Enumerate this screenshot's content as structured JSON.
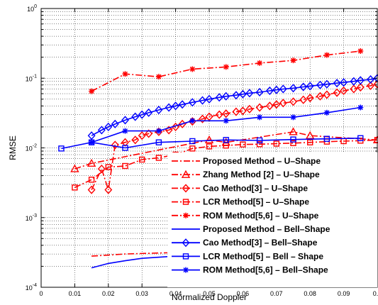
{
  "chart_data": {
    "type": "line",
    "title": "",
    "xlabel": "Normalized Doppler",
    "ylabel": "RMSE",
    "xlim": [
      0,
      0.1
    ],
    "ylim": [
      0.0001,
      1
    ],
    "yscale": "log",
    "grid": true,
    "legend_position": "bottom-right",
    "x_ticks": [
      0,
      0.01,
      0.02,
      0.03,
      0.04,
      0.05,
      0.06,
      0.07,
      0.08,
      0.09,
      0.1
    ],
    "x_tick_labels": [
      "0",
      "0.01",
      "0.02",
      "0.03",
      "0.04",
      "0.05",
      "0.06",
      "0.07",
      "0.08",
      "0.09",
      "0.1"
    ],
    "y_ticks": [
      0.0001,
      0.001,
      0.01,
      0.1,
      1
    ],
    "y_tick_labels": [
      {
        "base": "10",
        "exp": "-4"
      },
      {
        "base": "10",
        "exp": "-3"
      },
      {
        "base": "10",
        "exp": "-2"
      },
      {
        "base": "10",
        "exp": "-1"
      },
      {
        "base": "10",
        "exp": "0"
      }
    ],
    "series": [
      {
        "name": "Proposed Method – U–Shape",
        "color": "#ff0000",
        "dash": "dashdot",
        "marker": "none",
        "x": [
          0.015,
          0.025,
          0.035,
          0.045,
          0.055,
          0.065,
          0.075,
          0.085,
          0.1
        ],
        "y": [
          0.00028,
          0.0003,
          0.00031,
          0.00032,
          0.00033,
          0.00034,
          0.00034,
          0.00035,
          0.00036
        ]
      },
      {
        "name": "Zhang Method [2] – U–Shape",
        "color": "#ff0000",
        "dash": "dashdot",
        "marker": "triangle",
        "x": [
          0.01,
          0.015,
          0.05,
          0.055,
          0.075,
          0.08,
          0.1
        ],
        "y": [
          0.005,
          0.006,
          0.013,
          0.012,
          0.017,
          0.015,
          0.013
        ]
      },
      {
        "name": "Cao Method[3] – U–Shape",
        "color": "#ff0000",
        "dash": "dashdot",
        "marker": "diamond",
        "x": [
          0.015,
          0.018,
          0.02,
          0.022,
          0.025,
          0.028,
          0.03,
          0.032,
          0.035,
          0.038,
          0.04,
          0.042,
          0.045,
          0.048,
          0.05,
          0.053,
          0.055,
          0.058,
          0.06,
          0.062,
          0.065,
          0.068,
          0.07,
          0.072,
          0.075,
          0.078,
          0.08,
          0.083,
          0.085,
          0.088,
          0.09,
          0.093,
          0.095,
          0.098,
          0.1
        ],
        "y": [
          0.0025,
          0.005,
          0.0025,
          0.011,
          0.012,
          0.013,
          0.015,
          0.016,
          0.017,
          0.018,
          0.02,
          0.022,
          0.024,
          0.026,
          0.028,
          0.03,
          0.031,
          0.033,
          0.034,
          0.036,
          0.038,
          0.04,
          0.042,
          0.044,
          0.046,
          0.049,
          0.052,
          0.055,
          0.058,
          0.062,
          0.066,
          0.07,
          0.074,
          0.078,
          0.082
        ]
      },
      {
        "name": "LCR Method[5] – U–Shape",
        "color": "#ff0000",
        "dash": "dashdot",
        "marker": "square",
        "x": [
          0.01,
          0.015,
          0.02,
          0.025,
          0.03,
          0.035,
          0.04,
          0.045,
          0.05,
          0.055,
          0.06,
          0.065,
          0.07,
          0.075,
          0.08,
          0.085,
          0.09,
          0.095,
          0.1
        ],
        "y": [
          0.0027,
          0.0035,
          0.0053,
          0.0055,
          0.0068,
          0.0072,
          0.008,
          0.0098,
          0.0105,
          0.0108,
          0.0112,
          0.0113,
          0.0115,
          0.0117,
          0.012,
          0.0123,
          0.0125,
          0.0127,
          0.013
        ]
      },
      {
        "name": "ROM Method[5,6] – U–Shape",
        "color": "#ff0000",
        "dash": "dashdot",
        "marker": "star",
        "x": [
          0.015,
          0.025,
          0.035,
          0.045,
          0.055,
          0.065,
          0.075,
          0.085,
          0.095
        ],
        "y": [
          0.065,
          0.115,
          0.105,
          0.135,
          0.145,
          0.165,
          0.18,
          0.215,
          0.245
        ]
      },
      {
        "name": "Proposed Method – Bell–Shape",
        "color": "#0000ff",
        "dash": "solid",
        "marker": "none",
        "x": [
          0.015,
          0.02,
          0.025,
          0.03,
          0.04,
          0.05,
          0.06,
          0.07,
          0.08,
          0.09,
          0.1
        ],
        "y": [
          0.00019,
          0.00022,
          0.00024,
          0.00026,
          0.00028,
          0.00029,
          0.0003,
          0.0003,
          0.0003,
          0.0003,
          0.0003
        ]
      },
      {
        "name": "Cao Method[3] – Bell–Shape",
        "color": "#0000ff",
        "dash": "solid",
        "marker": "diamond",
        "x": [
          0.015,
          0.018,
          0.02,
          0.022,
          0.025,
          0.028,
          0.03,
          0.032,
          0.035,
          0.038,
          0.04,
          0.042,
          0.045,
          0.048,
          0.05,
          0.053,
          0.055,
          0.058,
          0.06,
          0.062,
          0.065,
          0.068,
          0.07,
          0.072,
          0.075,
          0.078,
          0.08,
          0.083,
          0.085,
          0.088,
          0.09,
          0.093,
          0.095,
          0.098,
          0.1
        ],
        "y": [
          0.015,
          0.018,
          0.02,
          0.022,
          0.025,
          0.028,
          0.03,
          0.032,
          0.035,
          0.038,
          0.04,
          0.042,
          0.045,
          0.048,
          0.05,
          0.053,
          0.055,
          0.057,
          0.059,
          0.061,
          0.063,
          0.066,
          0.068,
          0.07,
          0.072,
          0.075,
          0.077,
          0.08,
          0.082,
          0.085,
          0.087,
          0.09,
          0.093,
          0.096,
          0.1
        ]
      },
      {
        "name": "LCR Method[5] – Bell – Shape",
        "color": "#0000ff",
        "dash": "solid",
        "marker": "square",
        "x": [
          0.006,
          0.015,
          0.025,
          0.035,
          0.045,
          0.055,
          0.065,
          0.075,
          0.085,
          0.095
        ],
        "y": [
          0.0098,
          0.012,
          0.01,
          0.012,
          0.0125,
          0.013,
          0.0128,
          0.0132,
          0.0135,
          0.0138
        ]
      },
      {
        "name": "ROM Method[5,6] – Bell–Shape",
        "color": "#0000ff",
        "dash": "solid",
        "marker": "star",
        "x": [
          0.015,
          0.025,
          0.035,
          0.045,
          0.055,
          0.065,
          0.075,
          0.085,
          0.095
        ],
        "y": [
          0.012,
          0.0175,
          0.0175,
          0.0245,
          0.0245,
          0.0275,
          0.0275,
          0.032,
          0.038
        ]
      }
    ]
  }
}
